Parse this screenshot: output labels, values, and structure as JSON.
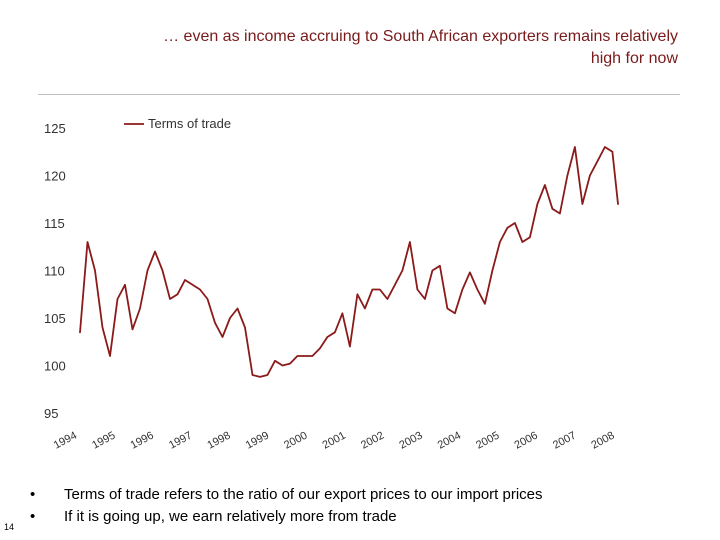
{
  "slide": {
    "title_line1": "… even as income accruing to South African exporters remains relatively",
    "title_line2": "high for now",
    "bullets": [
      {
        "marker": "•",
        "text": "Terms of trade refers to the ratio of our export prices to our import prices"
      },
      {
        "marker": "•",
        "text": "If it is going up, we earn relatively more from trade"
      }
    ],
    "page_number": "14"
  },
  "chart_data": {
    "type": "line",
    "title": "",
    "xlabel": "",
    "ylabel": "",
    "ylim": [
      95,
      125
    ],
    "yticks": [
      125,
      120,
      115,
      110,
      105,
      100,
      95
    ],
    "x_tick_labels": [
      "1994",
      "1995",
      "1996",
      "1997",
      "1998",
      "1999",
      "2000",
      "2001",
      "2002",
      "2003",
      "2004",
      "2005",
      "2006",
      "2007",
      "2008"
    ],
    "grid": false,
    "legend": "top-left",
    "series": [
      {
        "name": "Terms of trade",
        "color": "#8b1a1a",
        "x": [
          1994.0,
          1994.2,
          1994.4,
          1994.6,
          1994.8,
          1995.0,
          1995.2,
          1995.4,
          1995.6,
          1995.8,
          1996.0,
          1996.2,
          1996.4,
          1996.6,
          1996.8,
          1997.0,
          1997.2,
          1997.4,
          1997.6,
          1997.8,
          1998.0,
          1998.2,
          1998.4,
          1998.6,
          1998.8,
          1999.0,
          1999.2,
          1999.4,
          1999.6,
          1999.8,
          2000.0,
          2000.2,
          2000.4,
          2000.6,
          2000.8,
          2001.0,
          2001.2,
          2001.4,
          2001.6,
          2001.8,
          2002.0,
          2002.2,
          2002.4,
          2002.6,
          2002.8,
          2003.0,
          2003.2,
          2003.4,
          2003.6,
          2003.8,
          2004.0,
          2004.2,
          2004.4,
          2004.6,
          2004.8,
          2005.0,
          2005.2,
          2005.4,
          2005.6,
          2005.8,
          2006.0,
          2006.2,
          2006.4,
          2006.6,
          2006.8,
          2007.0,
          2007.2,
          2007.4,
          2007.6,
          2007.8,
          2008.0,
          2008.2,
          2008.35
        ],
        "values": [
          103.5,
          113.0,
          110.0,
          104.0,
          101.0,
          107.0,
          108.5,
          103.8,
          106.0,
          110.0,
          112.0,
          110.0,
          107.0,
          107.5,
          109.0,
          108.5,
          108.0,
          107.0,
          104.5,
          103.0,
          105.0,
          106.0,
          104.0,
          99.0,
          98.8,
          99.0,
          100.5,
          100.0,
          100.2,
          101.0,
          101.0,
          101.0,
          101.8,
          103.0,
          103.5,
          105.5,
          102.0,
          107.5,
          106.0,
          108.0,
          108.0,
          107.0,
          108.5,
          110.0,
          113.0,
          108.0,
          107.0,
          110.0,
          110.5,
          106.0,
          105.5,
          108.0,
          109.8,
          108.0,
          106.5,
          110.0,
          113.0,
          114.5,
          115.0,
          113.0,
          113.5,
          117.0,
          119.0,
          116.5,
          116.0,
          120.0,
          123.0,
          117.0,
          120.0,
          121.5,
          123.0,
          122.5,
          117.0
        ]
      }
    ]
  }
}
